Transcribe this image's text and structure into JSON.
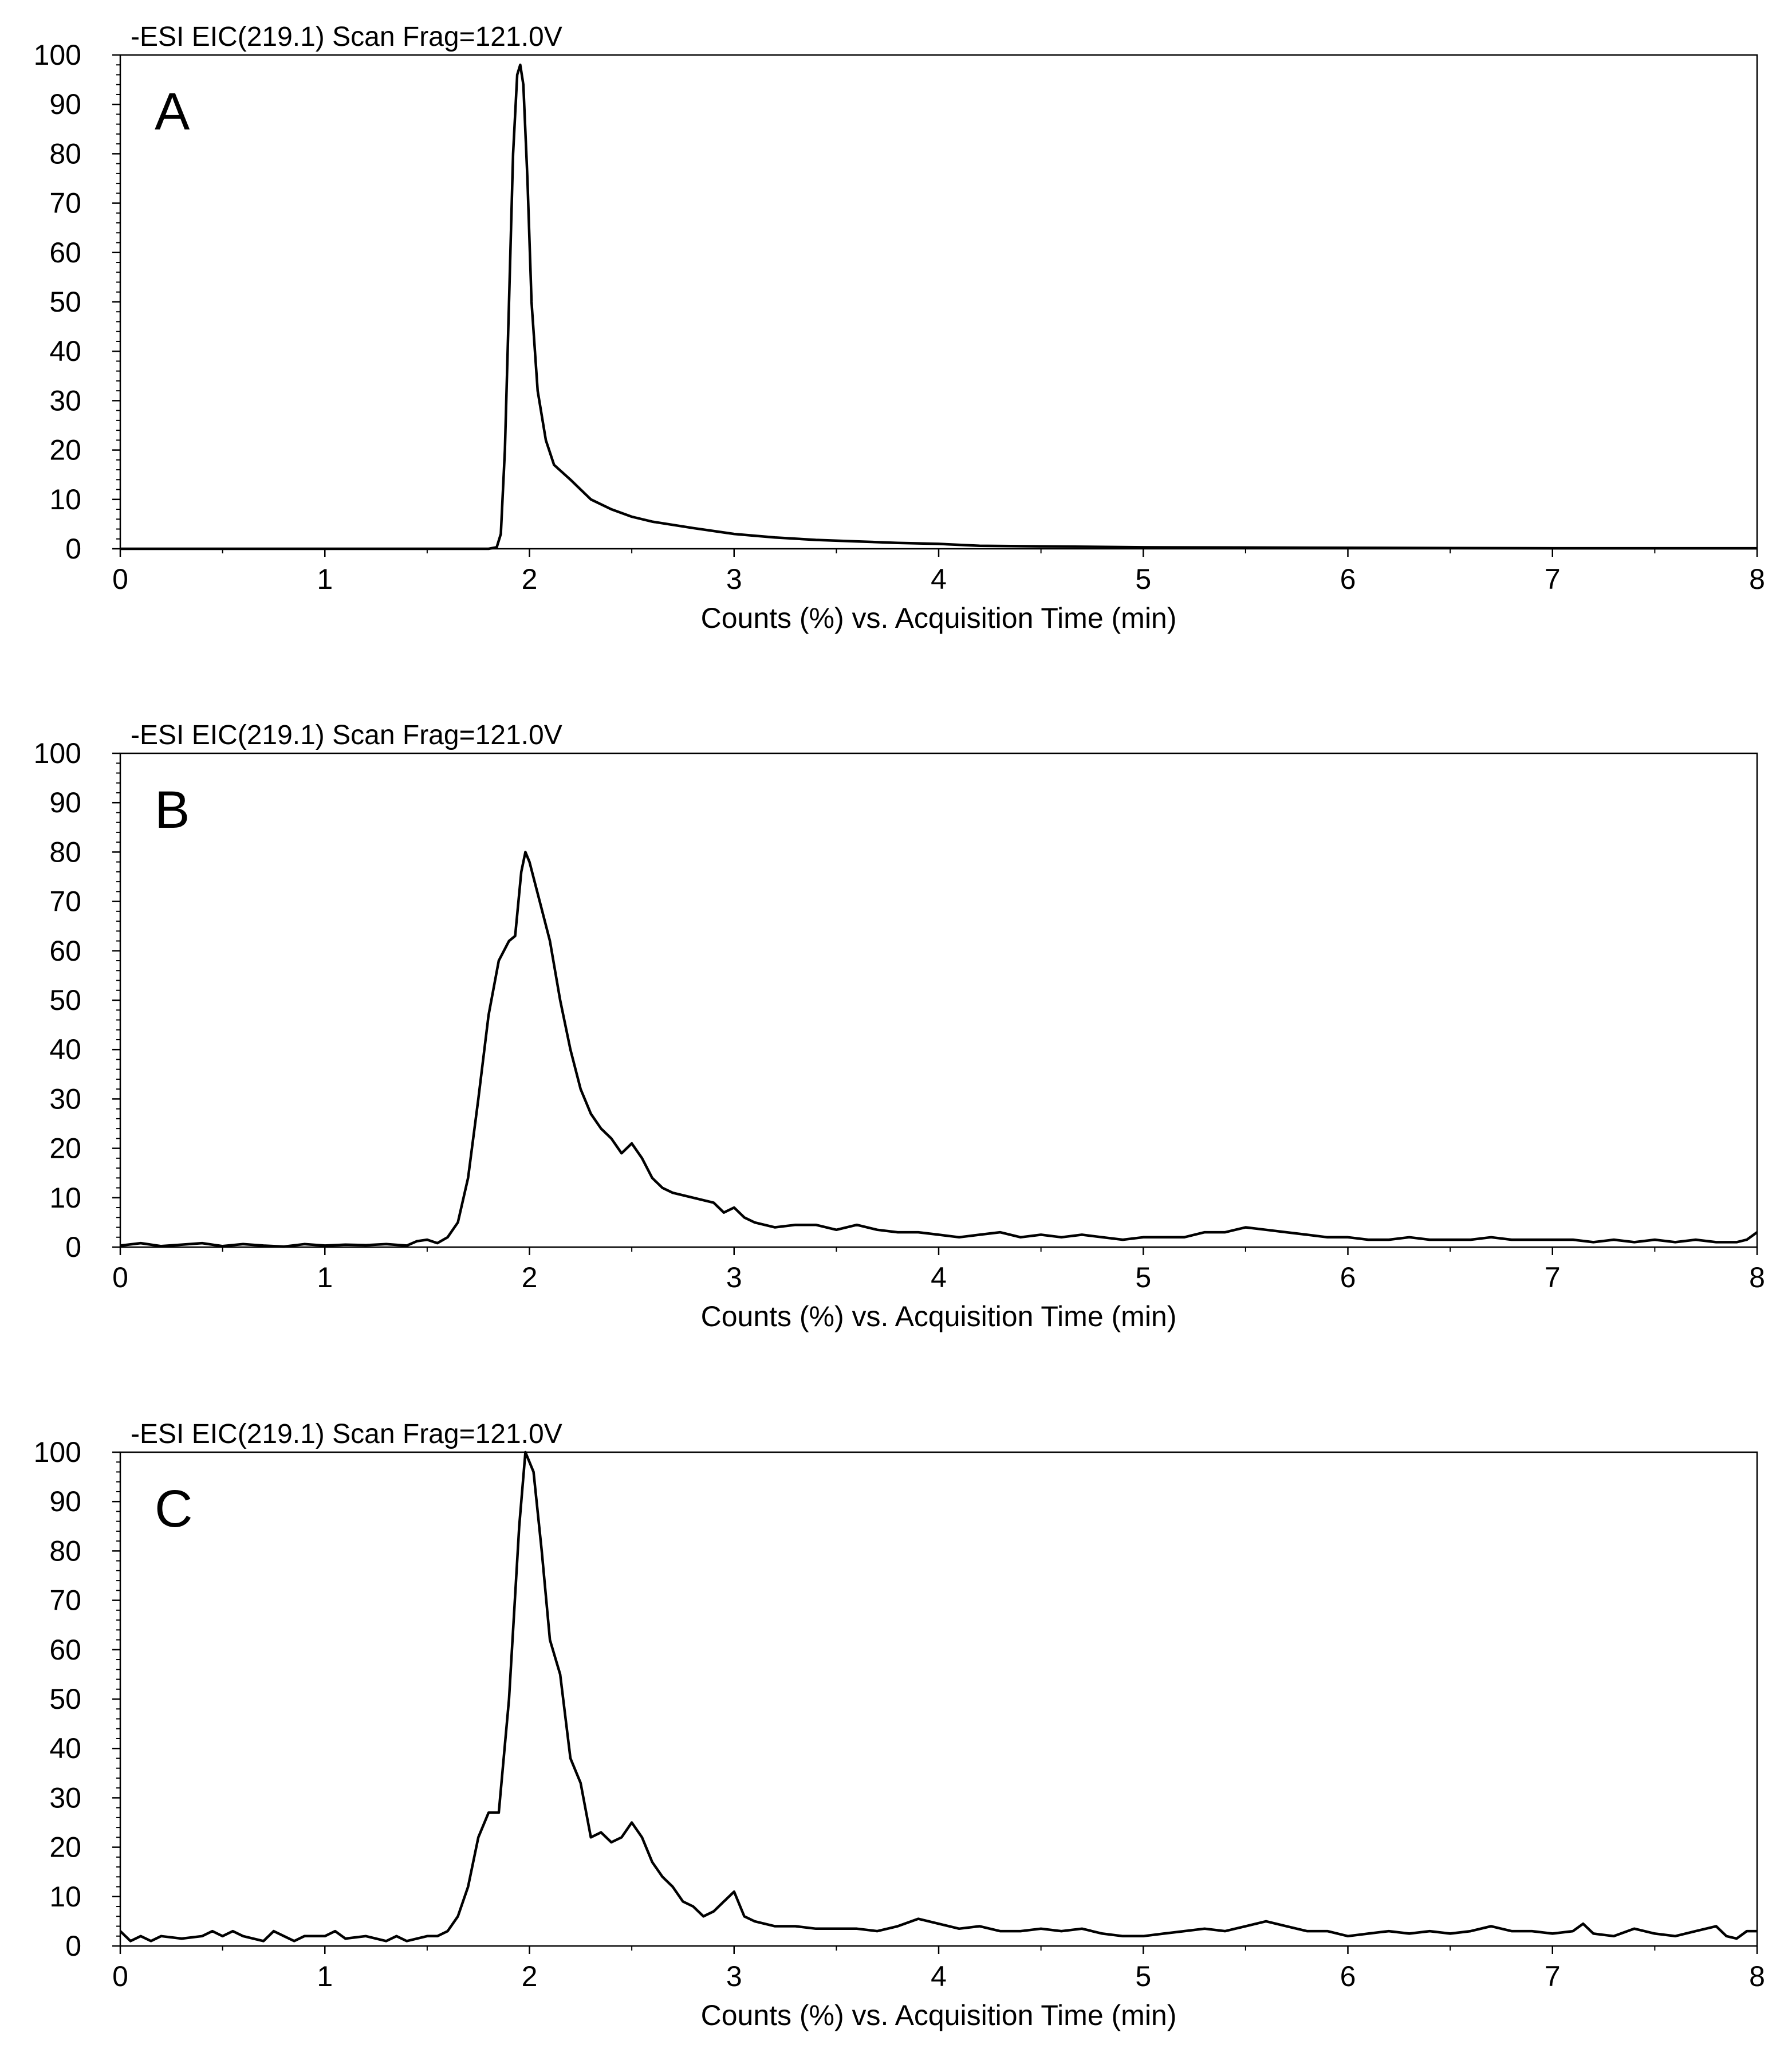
{
  "chart_data": [
    {
      "type": "line",
      "title": "-ESI EIC(219.1) Scan Frag=121.0V",
      "panel_label": "A",
      "xlabel": "Counts (%) vs. Acquisition Time (min)",
      "ylabel": "",
      "xlim": [
        0,
        8
      ],
      "ylim": [
        0,
        100
      ],
      "x_ticks": [
        "0",
        "1",
        "2",
        "3",
        "4",
        "5",
        "6",
        "7",
        "8"
      ],
      "y_ticks": [
        "0",
        "10",
        "20",
        "30",
        "40",
        "50",
        "60",
        "70",
        "80",
        "90",
        "100"
      ],
      "grid": false,
      "series": [
        {
          "points": [
            [
              0,
              0
            ],
            [
              0.5,
              0
            ],
            [
              1.0,
              0
            ],
            [
              1.5,
              0
            ],
            [
              1.8,
              0
            ],
            [
              1.84,
              0.3
            ],
            [
              1.86,
              3
            ],
            [
              1.88,
              20
            ],
            [
              1.9,
              50
            ],
            [
              1.92,
              80
            ],
            [
              1.94,
              96
            ],
            [
              1.955,
              98
            ],
            [
              1.97,
              94
            ],
            [
              1.99,
              75
            ],
            [
              2.01,
              50
            ],
            [
              2.04,
              32
            ],
            [
              2.08,
              22
            ],
            [
              2.12,
              17
            ],
            [
              2.2,
              14
            ],
            [
              2.3,
              10
            ],
            [
              2.4,
              8
            ],
            [
              2.5,
              6.5
            ],
            [
              2.6,
              5.5
            ],
            [
              2.8,
              4.2
            ],
            [
              3.0,
              3
            ],
            [
              3.2,
              2.3
            ],
            [
              3.4,
              1.8
            ],
            [
              3.6,
              1.5
            ],
            [
              3.8,
              1.2
            ],
            [
              4.0,
              1.0
            ],
            [
              4.2,
              0.6
            ],
            [
              4.5,
              0.5
            ],
            [
              5.0,
              0.3
            ],
            [
              6.0,
              0.2
            ],
            [
              7.0,
              0.1
            ],
            [
              8.0,
              0.1
            ]
          ]
        }
      ]
    },
    {
      "type": "line",
      "title": "-ESI EIC(219.1) Scan Frag=121.0V",
      "panel_label": "B",
      "xlabel": "Counts (%) vs. Acquisition Time (min)",
      "ylabel": "",
      "xlim": [
        0,
        8
      ],
      "ylim": [
        0,
        100
      ],
      "x_ticks": [
        "0",
        "1",
        "2",
        "3",
        "4",
        "5",
        "6",
        "7",
        "8"
      ],
      "y_ticks": [
        "0",
        "10",
        "20",
        "30",
        "40",
        "50",
        "60",
        "70",
        "80",
        "90",
        "100"
      ],
      "grid": false,
      "series": [
        {
          "points": [
            [
              0,
              0.3
            ],
            [
              0.1,
              0.8
            ],
            [
              0.2,
              0.2
            ],
            [
              0.3,
              0.5
            ],
            [
              0.4,
              0.8
            ],
            [
              0.5,
              0.2
            ],
            [
              0.6,
              0.6
            ],
            [
              0.7,
              0.3
            ],
            [
              0.8,
              0.1
            ],
            [
              0.9,
              0.6
            ],
            [
              1.0,
              0.3
            ],
            [
              1.1,
              0.5
            ],
            [
              1.2,
              0.4
            ],
            [
              1.3,
              0.6
            ],
            [
              1.4,
              0.3
            ],
            [
              1.45,
              1.2
            ],
            [
              1.5,
              1.5
            ],
            [
              1.55,
              0.8
            ],
            [
              1.6,
              2
            ],
            [
              1.65,
              5
            ],
            [
              1.7,
              14
            ],
            [
              1.75,
              30
            ],
            [
              1.8,
              47
            ],
            [
              1.85,
              58
            ],
            [
              1.9,
              62
            ],
            [
              1.93,
              63
            ],
            [
              1.96,
              76
            ],
            [
              1.98,
              80
            ],
            [
              2.0,
              78
            ],
            [
              2.05,
              70
            ],
            [
              2.1,
              62
            ],
            [
              2.15,
              50
            ],
            [
              2.2,
              40
            ],
            [
              2.25,
              32
            ],
            [
              2.3,
              27
            ],
            [
              2.35,
              24
            ],
            [
              2.4,
              22
            ],
            [
              2.45,
              19
            ],
            [
              2.5,
              21
            ],
            [
              2.55,
              18
            ],
            [
              2.6,
              14
            ],
            [
              2.65,
              12
            ],
            [
              2.7,
              11
            ],
            [
              2.8,
              10
            ],
            [
              2.9,
              9
            ],
            [
              2.95,
              7
            ],
            [
              3.0,
              8
            ],
            [
              3.05,
              6
            ],
            [
              3.1,
              5
            ],
            [
              3.2,
              4
            ],
            [
              3.3,
              4.5
            ],
            [
              3.4,
              4.5
            ],
            [
              3.5,
              3.5
            ],
            [
              3.6,
              4.5
            ],
            [
              3.7,
              3.5
            ],
            [
              3.8,
              3
            ],
            [
              3.9,
              3
            ],
            [
              4.0,
              2.5
            ],
            [
              4.1,
              2
            ],
            [
              4.2,
              2.5
            ],
            [
              4.3,
              3
            ],
            [
              4.4,
              2
            ],
            [
              4.5,
              2.5
            ],
            [
              4.6,
              2
            ],
            [
              4.7,
              2.5
            ],
            [
              4.8,
              2
            ],
            [
              4.9,
              1.5
            ],
            [
              5.0,
              2
            ],
            [
              5.1,
              2
            ],
            [
              5.2,
              2
            ],
            [
              5.3,
              3
            ],
            [
              5.4,
              3
            ],
            [
              5.5,
              4
            ],
            [
              5.6,
              3.5
            ],
            [
              5.7,
              3
            ],
            [
              5.8,
              2.5
            ],
            [
              5.9,
              2
            ],
            [
              6.0,
              2
            ],
            [
              6.1,
              1.5
            ],
            [
              6.2,
              1.5
            ],
            [
              6.3,
              2
            ],
            [
              6.4,
              1.5
            ],
            [
              6.5,
              1.5
            ],
            [
              6.6,
              1.5
            ],
            [
              6.7,
              2
            ],
            [
              6.8,
              1.5
            ],
            [
              6.9,
              1.5
            ],
            [
              7.0,
              1.5
            ],
            [
              7.1,
              1.5
            ],
            [
              7.2,
              1
            ],
            [
              7.3,
              1.5
            ],
            [
              7.4,
              1
            ],
            [
              7.5,
              1.5
            ],
            [
              7.6,
              1
            ],
            [
              7.7,
              1.5
            ],
            [
              7.8,
              1
            ],
            [
              7.9,
              1
            ],
            [
              7.95,
              1.5
            ],
            [
              8.0,
              3
            ]
          ]
        }
      ]
    },
    {
      "type": "line",
      "title": "-ESI EIC(219.1) Scan Frag=121.0V",
      "panel_label": "C",
      "xlabel": "Counts (%) vs. Acquisition Time (min)",
      "ylabel": "",
      "xlim": [
        0,
        8
      ],
      "ylim": [
        0,
        100
      ],
      "x_ticks": [
        "0",
        "1",
        "2",
        "3",
        "4",
        "5",
        "6",
        "7",
        "8"
      ],
      "y_ticks": [
        "0",
        "10",
        "20",
        "30",
        "40",
        "50",
        "60",
        "70",
        "80",
        "90",
        "100"
      ],
      "grid": false,
      "series": [
        {
          "points": [
            [
              0,
              3
            ],
            [
              0.05,
              1
            ],
            [
              0.1,
              2
            ],
            [
              0.15,
              1
            ],
            [
              0.2,
              2
            ],
            [
              0.3,
              1.5
            ],
            [
              0.4,
              2
            ],
            [
              0.45,
              3
            ],
            [
              0.5,
              2
            ],
            [
              0.55,
              3
            ],
            [
              0.6,
              2
            ],
            [
              0.7,
              1
            ],
            [
              0.75,
              3
            ],
            [
              0.8,
              2
            ],
            [
              0.85,
              1
            ],
            [
              0.9,
              2
            ],
            [
              1.0,
              2
            ],
            [
              1.05,
              3
            ],
            [
              1.1,
              1.5
            ],
            [
              1.2,
              2
            ],
            [
              1.3,
              1
            ],
            [
              1.35,
              2
            ],
            [
              1.4,
              1
            ],
            [
              1.5,
              2
            ],
            [
              1.55,
              2
            ],
            [
              1.6,
              3
            ],
            [
              1.65,
              6
            ],
            [
              1.7,
              12
            ],
            [
              1.75,
              22
            ],
            [
              1.8,
              27
            ],
            [
              1.85,
              27
            ],
            [
              1.9,
              50
            ],
            [
              1.95,
              85
            ],
            [
              1.98,
              100
            ],
            [
              2.02,
              96
            ],
            [
              2.06,
              80
            ],
            [
              2.1,
              62
            ],
            [
              2.15,
              55
            ],
            [
              2.2,
              38
            ],
            [
              2.25,
              33
            ],
            [
              2.3,
              22
            ],
            [
              2.35,
              23
            ],
            [
              2.4,
              21
            ],
            [
              2.45,
              22
            ],
            [
              2.5,
              25
            ],
            [
              2.55,
              22
            ],
            [
              2.6,
              17
            ],
            [
              2.65,
              14
            ],
            [
              2.7,
              12
            ],
            [
              2.75,
              9
            ],
            [
              2.8,
              8
            ],
            [
              2.85,
              6
            ],
            [
              2.9,
              7
            ],
            [
              2.95,
              9
            ],
            [
              3.0,
              11
            ],
            [
              3.05,
              6
            ],
            [
              3.1,
              5
            ],
            [
              3.2,
              4
            ],
            [
              3.3,
              4
            ],
            [
              3.4,
              3.5
            ],
            [
              3.5,
              3.5
            ],
            [
              3.6,
              3.5
            ],
            [
              3.7,
              3
            ],
            [
              3.8,
              4
            ],
            [
              3.9,
              5.5
            ],
            [
              4.0,
              4.5
            ],
            [
              4.1,
              3.5
            ],
            [
              4.2,
              4
            ],
            [
              4.3,
              3
            ],
            [
              4.4,
              3
            ],
            [
              4.5,
              3.5
            ],
            [
              4.6,
              3
            ],
            [
              4.7,
              3.5
            ],
            [
              4.8,
              2.5
            ],
            [
              4.9,
              2
            ],
            [
              5.0,
              2
            ],
            [
              5.1,
              2.5
            ],
            [
              5.2,
              3
            ],
            [
              5.3,
              3.5
            ],
            [
              5.4,
              3
            ],
            [
              5.5,
              4
            ],
            [
              5.6,
              5
            ],
            [
              5.7,
              4
            ],
            [
              5.8,
              3
            ],
            [
              5.9,
              3
            ],
            [
              6.0,
              2
            ],
            [
              6.1,
              2.5
            ],
            [
              6.2,
              3
            ],
            [
              6.3,
              2.5
            ],
            [
              6.4,
              3
            ],
            [
              6.5,
              2.5
            ],
            [
              6.6,
              3
            ],
            [
              6.7,
              4
            ],
            [
              6.8,
              3
            ],
            [
              6.9,
              3
            ],
            [
              7.0,
              2.5
            ],
            [
              7.1,
              3
            ],
            [
              7.15,
              4.5
            ],
            [
              7.2,
              2.5
            ],
            [
              7.3,
              2
            ],
            [
              7.4,
              3.5
            ],
            [
              7.5,
              2.5
            ],
            [
              7.6,
              2
            ],
            [
              7.7,
              3
            ],
            [
              7.8,
              4
            ],
            [
              7.85,
              2
            ],
            [
              7.9,
              1.5
            ],
            [
              7.95,
              3
            ],
            [
              8.0,
              3
            ]
          ]
        }
      ]
    }
  ]
}
